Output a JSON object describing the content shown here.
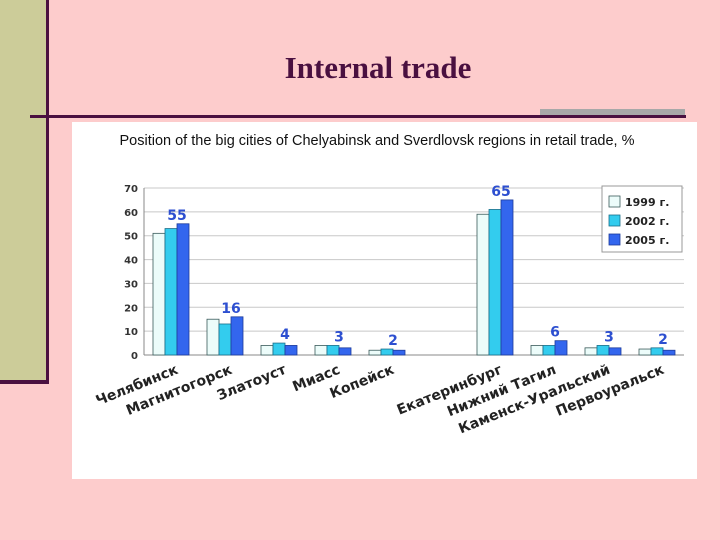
{
  "slide": {
    "title": "Internal trade"
  },
  "colors": {
    "background": "#fdcccc",
    "accent": "#4a1040",
    "series": [
      "#ecfcfa",
      "#33ccee",
      "#3366ee"
    ]
  },
  "chart_data": {
    "type": "bar",
    "title": "Position of the big cities of Chelyabinsk and Sverdlovsk regions in retail trade, %",
    "categories": [
      "Челябинск",
      "Магнитогорск",
      "Златоуст",
      "Миасс",
      "Копейск",
      "",
      "Екатеринбург",
      "Нижний Тагил",
      "Каменск-Уральский",
      "Первоуральск"
    ],
    "series": [
      {
        "name": "1999 г.",
        "values": [
          51,
          15,
          4,
          4,
          2,
          null,
          59,
          4,
          3,
          2.5
        ]
      },
      {
        "name": "2002 г.",
        "values": [
          53,
          13,
          5,
          4,
          2.5,
          null,
          61,
          4,
          4,
          3
        ]
      },
      {
        "name": "2005 г.",
        "values": [
          55,
          16,
          4,
          3,
          2,
          null,
          65,
          6,
          3,
          2
        ]
      }
    ],
    "data_labels": [
      "55",
      "16",
      "4",
      "3",
      "2",
      "",
      "65",
      "6",
      "3",
      "2"
    ],
    "ylim": [
      0,
      70
    ],
    "yticks": [
      "0",
      "10",
      "20",
      "30",
      "40",
      "50",
      "60",
      "70"
    ],
    "grid": true,
    "legend": "right"
  }
}
